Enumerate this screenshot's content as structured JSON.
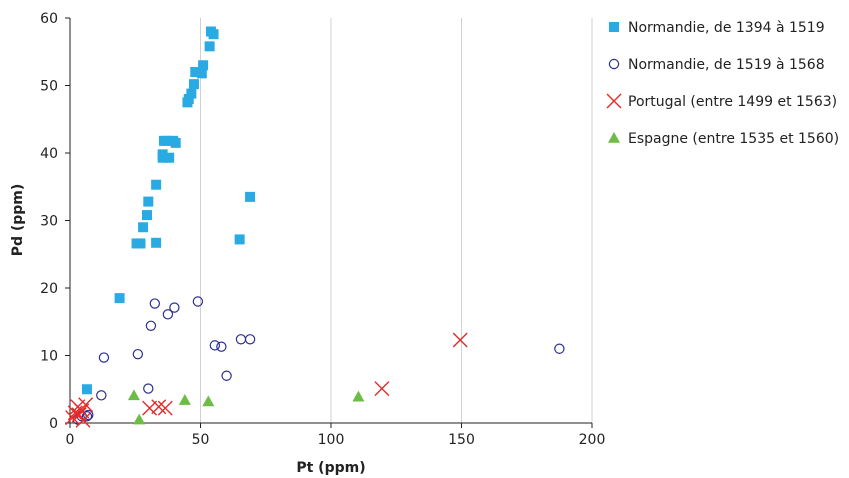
{
  "chart_data": {
    "type": "scatter",
    "xlabel": "Pt (ppm)",
    "ylabel": "Pd (ppm)",
    "xlim": [
      0,
      200
    ],
    "ylim": [
      0,
      60
    ],
    "xticks": [
      0,
      50,
      100,
      150,
      200
    ],
    "yticks": [
      0,
      10,
      20,
      30,
      40,
      50,
      60
    ],
    "grid": "vertical major gridlines",
    "legend_position": "right",
    "series": [
      {
        "name": "Normandie, de 1394 à 1519",
        "marker": "square",
        "color": "#2aaae2",
        "points": [
          [
            6.5,
            5.0
          ],
          [
            19,
            18.5
          ],
          [
            25.5,
            26.6
          ],
          [
            27,
            26.6
          ],
          [
            28,
            29.0
          ],
          [
            29.5,
            30.8
          ],
          [
            30,
            32.8
          ],
          [
            33,
            26.7
          ],
          [
            33,
            35.3
          ],
          [
            35.5,
            39.3
          ],
          [
            35.5,
            39.8
          ],
          [
            36,
            41.8
          ],
          [
            37,
            41.8
          ],
          [
            38,
            39.3
          ],
          [
            39.5,
            41.8
          ],
          [
            40.5,
            41.5
          ],
          [
            45,
            47.5
          ],
          [
            45.5,
            48.0
          ],
          [
            46.5,
            48.8
          ],
          [
            47.5,
            50.2
          ],
          [
            48,
            52.0
          ],
          [
            50.5,
            51.8
          ],
          [
            51,
            53.0
          ],
          [
            53.5,
            55.8
          ],
          [
            54,
            58.0
          ],
          [
            55,
            57.6
          ],
          [
            65,
            27.2
          ],
          [
            69,
            33.5
          ]
        ]
      },
      {
        "name": "Normandie, de 1519 à 1568",
        "marker": "circle",
        "color": "#2b2f8f",
        "points": [
          [
            3,
            0.5
          ],
          [
            4.5,
            1.0
          ],
          [
            6.5,
            1.0
          ],
          [
            7,
            1.2
          ],
          [
            12,
            4.1
          ],
          [
            13,
            9.7
          ],
          [
            26,
            10.2
          ],
          [
            30,
            5.1
          ],
          [
            31,
            14.4
          ],
          [
            32.5,
            17.7
          ],
          [
            37.5,
            16.1
          ],
          [
            40,
            17.1
          ],
          [
            49,
            18.0
          ],
          [
            55.5,
            11.5
          ],
          [
            58,
            11.3
          ],
          [
            60,
            7.0
          ],
          [
            65.5,
            12.4
          ],
          [
            69,
            12.4
          ],
          [
            187.5,
            11.0
          ]
        ]
      },
      {
        "name": "Portugal (entre 1499 et 1563)",
        "marker": "x",
        "color": "#e62a2a",
        "points": [
          [
            1,
            0.8
          ],
          [
            2,
            1.5
          ],
          [
            3,
            2.4
          ],
          [
            3.5,
            1.2
          ],
          [
            4.5,
            1.8
          ],
          [
            5,
            0.4
          ],
          [
            6,
            2.7
          ],
          [
            30.5,
            2.2
          ],
          [
            34,
            2.4
          ],
          [
            36.5,
            2.2
          ],
          [
            119.5,
            5.1
          ],
          [
            149.5,
            12.3
          ]
        ]
      },
      {
        "name": "Espagne (entre 1535 et 1560)",
        "marker": "triangle",
        "color": "#6cbd45",
        "points": [
          [
            24.5,
            4.1
          ],
          [
            26.5,
            0.5
          ],
          [
            44,
            3.4
          ],
          [
            53,
            3.2
          ],
          [
            110.5,
            3.9
          ]
        ]
      }
    ]
  }
}
